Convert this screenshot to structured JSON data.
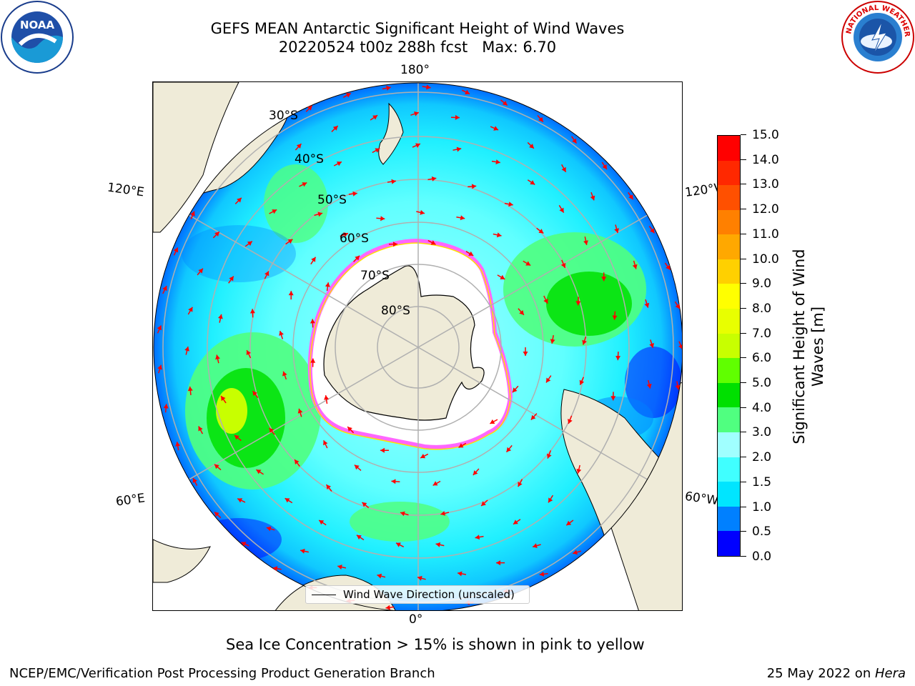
{
  "title": {
    "line1": "GEFS MEAN Antarctic Significant Height of Wind Waves",
    "line2": "20220524 t00z 288h fcst   Max: 6.70"
  },
  "logos": {
    "left": "noaa-logo",
    "right": "nws-logo",
    "left_text": "NOAA",
    "right_text": "NATIONAL WEATHER SERVICE"
  },
  "map": {
    "projection": "south-polar-stereographic",
    "longitude_labels": {
      "top": "180°",
      "bottom": "0°",
      "upper_left": "120°E",
      "lower_left": "60°E",
      "upper_right": "120°W",
      "lower_right": "60°W"
    },
    "latitude_labels": [
      "30°S",
      "40°S",
      "50°S",
      "60°S",
      "70°S",
      "80°S"
    ],
    "colors": {
      "land": "#efebd8",
      "ocean_low": "#00ffff",
      "ice_edge": "#ff66ff",
      "arrow": "#ff0000",
      "grid": "#b0b0b0"
    }
  },
  "legend": {
    "label": "Wind Wave Direction (unscaled)"
  },
  "colorbar": {
    "label": "Significant Height of Wind Waves [m]",
    "ticks": [
      "0.0",
      "0.5",
      "1.0",
      "1.5",
      "2.0",
      "3.0",
      "4.0",
      "5.0",
      "6.0",
      "7.0",
      "8.0",
      "9.0",
      "10.0",
      "11.0",
      "12.0",
      "13.0",
      "14.0",
      "15.0"
    ],
    "colors": [
      "#0000ff",
      "#0080ff",
      "#00e5ff",
      "#40ffff",
      "#a0ffff",
      "#50ff80",
      "#00e000",
      "#60ff00",
      "#c8ff00",
      "#e8ff00",
      "#ffff00",
      "#ffd000",
      "#ffa800",
      "#ff8000",
      "#ff5000",
      "#ff2800",
      "#ff0000"
    ]
  },
  "caption": "Sea Ice Concentration > 15% is shown in pink to yellow",
  "footer": {
    "left": "NCEP/EMC/Verification Post Processing Product Generation Branch",
    "right_date": "25 May 2022 on ",
    "right_machine": "Hera"
  }
}
